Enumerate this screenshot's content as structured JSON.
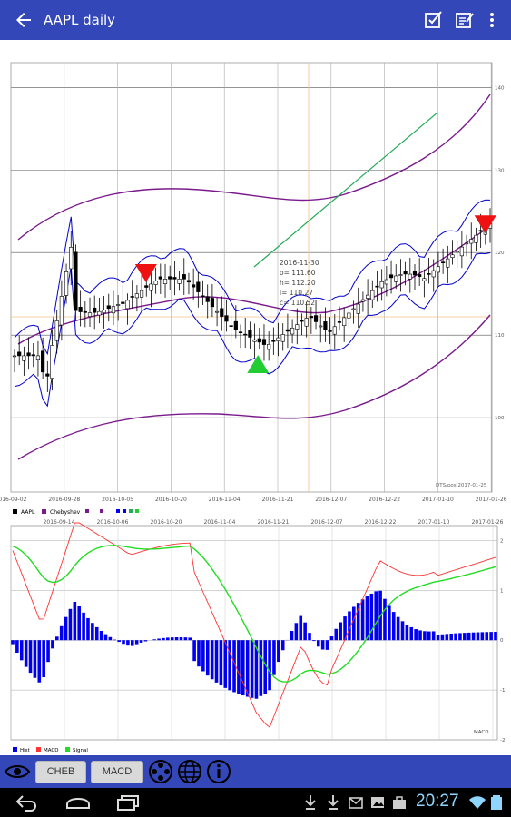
{
  "app_bar": {
    "title": "AAPL daily",
    "actions": [
      "back-arrow-icon",
      "checkbox-edit-icon",
      "edit-note-icon",
      "more-vert-icon"
    ]
  },
  "colors": {
    "toolbar": "#3347b8",
    "candle": "#000000",
    "chebyshev": "#7a1a8c",
    "bollinger": "#0000cc",
    "trendline": "#22aa55",
    "buy_marker": "#22cc33",
    "sell_marker": "#ee1111",
    "macd": "#ff3333",
    "signal": "#22dd22",
    "hist": "#0000ee"
  },
  "chart_data": [
    {
      "type": "candlestick",
      "title": "",
      "x_ticks": [
        "2016-09-02",
        "2016-09-28",
        "2016-10-05",
        "2016-10-20",
        "2016-11-04",
        "2016-11-21",
        "2016-12-07",
        "2016-12-22",
        "2017-01-10",
        "2017-01-26"
      ],
      "x_ticks_secondary": [
        "2016-09-14",
        "2016-10-06",
        "2016-10-20",
        "2016-11-04",
        "2016-11-21",
        "2016-12-07",
        "2016-12-22",
        "2017-01-10",
        "2017-01-26"
      ],
      "y_ticks": [
        100,
        110,
        120,
        130,
        140
      ],
      "ylim": [
        91,
        143
      ],
      "legend": [
        "AAPL",
        "Chebyshev"
      ],
      "tooltip": {
        "date": "2016-11-30",
        "o": "o=   111.60",
        "h": "h=   112.20",
        "l": "l=   110.27",
        "c": "c=   110.52"
      },
      "bottom_label": "DTS/pos 2017-01-25",
      "markers": [
        {
          "type": "sell",
          "date": "2016-10-13",
          "price": 117.5
        },
        {
          "type": "buy",
          "date": "2016-11-16",
          "price": 106.5
        },
        {
          "type": "sell",
          "date": "2017-01-24",
          "price": 123.4
        }
      ]
    },
    {
      "type": "line",
      "title": "MACD",
      "series": [
        {
          "name": "Hist"
        },
        {
          "name": "MACD"
        },
        {
          "name": "Signal"
        }
      ],
      "y_ticks": [
        -2,
        -1,
        0,
        1,
        2
      ],
      "ylim": [
        -2,
        2.3
      ]
    }
  ],
  "toolbar": {
    "cheb_label": "CHEB",
    "macd_label": "MACD",
    "icons": [
      "eye-icon",
      "film-reel-icon",
      "globe-icon",
      "info-icon"
    ]
  },
  "status_bar": {
    "clock": "20:27",
    "icons": [
      "back-icon",
      "home-icon",
      "recents-icon",
      "download-icon",
      "download-icon-2",
      "gmail-icon",
      "photo-icon",
      "briefcase-icon",
      "wifi-icon",
      "battery-icon"
    ]
  }
}
